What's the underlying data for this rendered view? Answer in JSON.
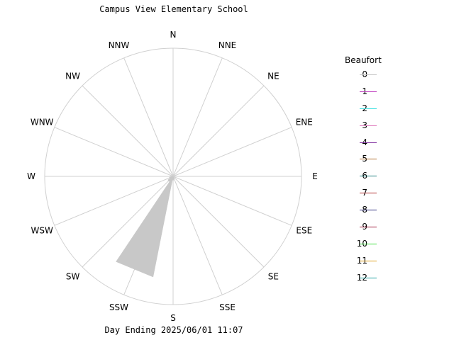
{
  "title": "Campus View Elementary School",
  "footer": "Day Ending 2025/06/01 11:07",
  "chart_data": {
    "type": "wind-rose",
    "directions": [
      "N",
      "NNE",
      "NE",
      "ENE",
      "E",
      "ESE",
      "SE",
      "SSE",
      "S",
      "SSW",
      "SW",
      "WSW",
      "W",
      "WNW",
      "NW",
      "NNW"
    ],
    "radius_max": 100,
    "petal_color": "#c8c8c8",
    "petals": [
      {
        "direction": "SSW",
        "angle_deg": 202.5,
        "half_width_deg": 11.25,
        "value": 80
      },
      {
        "direction": "S",
        "angle_deg": 180.0,
        "half_width_deg": 11.25,
        "value": 3
      },
      {
        "direction": "SW",
        "angle_deg": 225.0,
        "half_width_deg": 11.25,
        "value": 5
      },
      {
        "direction": "WSW",
        "angle_deg": 247.5,
        "half_width_deg": 11.25,
        "value": 3
      },
      {
        "direction": "SSE",
        "angle_deg": 157.5,
        "half_width_deg": 11.25,
        "value": 2
      }
    ]
  },
  "legend": {
    "title": "Beaufort",
    "items": [
      {
        "label": "0",
        "color": "#c8c8c8"
      },
      {
        "label": "1",
        "color": "#c040c0"
      },
      {
        "label": "2",
        "color": "#40e0e0"
      },
      {
        "label": "3",
        "color": "#e080c0"
      },
      {
        "label": "4",
        "color": "#8030a0"
      },
      {
        "label": "5",
        "color": "#b07030"
      },
      {
        "label": "6",
        "color": "#208080"
      },
      {
        "label": "7",
        "color": "#b03030"
      },
      {
        "label": "8",
        "color": "#303080"
      },
      {
        "label": "9",
        "color": "#a02040"
      },
      {
        "label": "10",
        "color": "#40e040"
      },
      {
        "label": "11",
        "color": "#e0a020"
      },
      {
        "label": "12",
        "color": "#20a0a0"
      }
    ]
  }
}
